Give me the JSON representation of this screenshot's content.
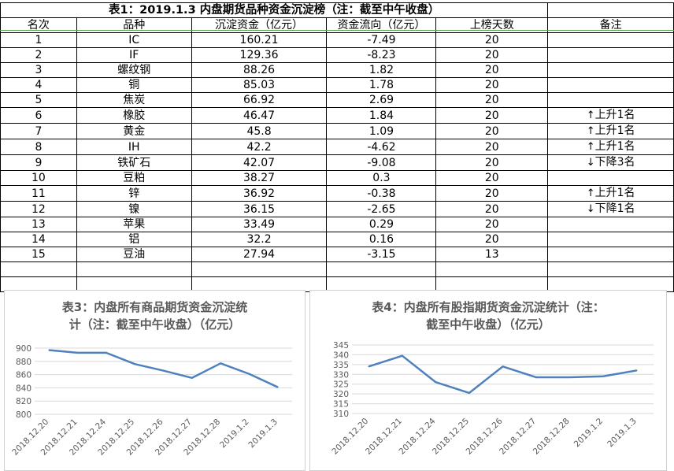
{
  "table": {
    "title": "表1：2019.1.3 内盘期货品种资金沉淀榜（注：截至中午收盘）",
    "headers": [
      "名次",
      "品种",
      "沉淀资金（亿元）",
      "资金流向（亿元）",
      "上榜天数",
      "备注"
    ],
    "rows": [
      {
        "rank": "1",
        "name": "IC",
        "fund": "160.21",
        "flow": "-7.49",
        "days": "20",
        "note": ""
      },
      {
        "rank": "2",
        "name": "IF",
        "fund": "129.36",
        "flow": "-8.23",
        "days": "20",
        "note": ""
      },
      {
        "rank": "3",
        "name": "螺纹钢",
        "fund": "88.26",
        "flow": "1.82",
        "days": "20",
        "note": ""
      },
      {
        "rank": "4",
        "name": "铜",
        "fund": "85.03",
        "flow": "1.78",
        "days": "20",
        "note": ""
      },
      {
        "rank": "5",
        "name": "焦炭",
        "fund": "66.92",
        "flow": "2.69",
        "days": "20",
        "note": ""
      },
      {
        "rank": "6",
        "name": "橡胶",
        "fund": "46.47",
        "flow": "1.84",
        "days": "20",
        "note": "上升1名",
        "dir": "up"
      },
      {
        "rank": "7",
        "name": "黄金",
        "fund": "45.8",
        "flow": "1.09",
        "days": "20",
        "note": "上升1名",
        "dir": "up"
      },
      {
        "rank": "8",
        "name": "IH",
        "fund": "42.2",
        "flow": "-4.62",
        "days": "20",
        "note": "上升1名",
        "dir": "up"
      },
      {
        "rank": "9",
        "name": "铁矿石",
        "fund": "42.07",
        "flow": "-9.08",
        "days": "20",
        "note": "下降3名",
        "dir": "down"
      },
      {
        "rank": "10",
        "name": "豆粕",
        "fund": "38.27",
        "flow": "0.3",
        "days": "20",
        "note": ""
      },
      {
        "rank": "11",
        "name": "锌",
        "fund": "36.92",
        "flow": "-0.38",
        "days": "20",
        "note": "上升1名",
        "dir": "up"
      },
      {
        "rank": "12",
        "name": "镍",
        "fund": "36.15",
        "flow": "-2.65",
        "days": "20",
        "note": "下降1名",
        "dir": "down"
      },
      {
        "rank": "13",
        "name": "苹果",
        "fund": "33.49",
        "flow": "0.29",
        "days": "20",
        "note": ""
      },
      {
        "rank": "14",
        "name": "铝",
        "fund": "32.2",
        "flow": "0.16",
        "days": "20",
        "note": ""
      },
      {
        "rank": "15",
        "name": "豆油",
        "fund": "27.94",
        "flow": "-3.15",
        "days": "13",
        "note": ""
      }
    ]
  },
  "icons": {
    "up": "arrow-up-icon",
    "down": "arrow-down-icon"
  },
  "colors": {
    "line": "#4f81bd",
    "grid": "#d9d9d9",
    "title": "#595959",
    "axis_text": "#595959"
  },
  "chart_data": [
    {
      "type": "line",
      "title_line1": "表3：内盘所有商品期货资金沉淀统",
      "title_line2": "计（注：截至中午收盘）（亿元）",
      "categories": [
        "2018.12.20",
        "2018.12.21",
        "2018.12.24",
        "2018.12.25",
        "2018.12.26",
        "2018.12.27",
        "2018.12.28",
        "2019.1.2",
        "2019.1.3"
      ],
      "values": [
        897,
        893,
        893,
        876,
        866,
        855,
        877,
        861,
        841
      ],
      "ylim": [
        800,
        900
      ],
      "yticks": [
        800,
        820,
        840,
        860,
        880,
        900
      ],
      "grid": true,
      "legend": "none"
    },
    {
      "type": "line",
      "title_line1": "表4：内盘所有股指期货资金沉淀统计（注：",
      "title_line2": "截至中午收盘）（亿元）",
      "categories": [
        "2018.12.20",
        "2018.12.21",
        "2018.12.24",
        "2018.12.25",
        "2018.12.26",
        "2018.12.27",
        "2018.12.28",
        "2019.1.2",
        "2019.1.3"
      ],
      "values": [
        334,
        339.5,
        326,
        320.5,
        334,
        328.5,
        328.5,
        329,
        332
      ],
      "ylim": [
        310,
        345
      ],
      "yticks": [
        310,
        315,
        320,
        325,
        330,
        335,
        340,
        345
      ],
      "grid": true,
      "legend": "none"
    }
  ]
}
